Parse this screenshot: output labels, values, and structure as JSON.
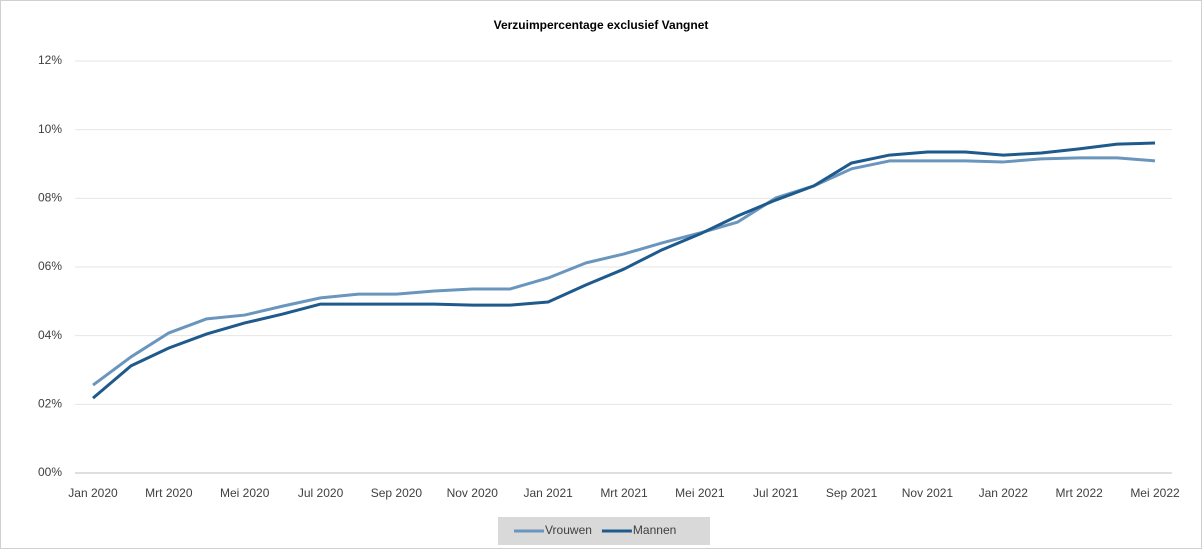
{
  "chart_data": {
    "type": "line",
    "title": "Verzuimpercentage exclusief Vangnet",
    "categories": [
      "Jan 2020",
      null,
      "Mrt 2020",
      null,
      "Mei 2020",
      null,
      "Jul 2020",
      null,
      "Sep 2020",
      null,
      "Nov 2020",
      null,
      "Jan 2021",
      null,
      "Mrt 2021",
      null,
      "Mei 2021",
      null,
      "Jul 2021",
      null,
      "Sep 2021",
      null,
      "Nov 2021",
      null,
      "Jan 2022",
      null,
      "Mrt 2022",
      null,
      "Mei 2022"
    ],
    "series": [
      {
        "name": "Vrouwen",
        "color": "#6a96be",
        "values": [
          2.56,
          3.38,
          4.08,
          4.49,
          4.6,
          4.86,
          5.1,
          5.21,
          5.21,
          5.3,
          5.36,
          5.36,
          5.68,
          6.12,
          6.38,
          6.7,
          6.99,
          7.31,
          8.01,
          8.36,
          8.86,
          9.09,
          9.09,
          9.09,
          9.06,
          9.15,
          9.18,
          9.18,
          9.09
        ]
      },
      {
        "name": "Mannen",
        "color": "#1f5a8c",
        "values": [
          2.18,
          3.12,
          3.64,
          4.05,
          4.37,
          4.63,
          4.92,
          4.92,
          4.92,
          4.92,
          4.89,
          4.89,
          4.98,
          5.48,
          5.94,
          6.5,
          6.96,
          7.49,
          7.95,
          8.36,
          9.03,
          9.26,
          9.35,
          9.35,
          9.26,
          9.32,
          9.44,
          9.58,
          9.61
        ]
      }
    ],
    "ylim": [
      0,
      12
    ],
    "yticks": [
      {
        "value": 0,
        "label": "00%"
      },
      {
        "value": 2,
        "label": "02%"
      },
      {
        "value": 4,
        "label": "04%"
      },
      {
        "value": 6,
        "label": "06%"
      },
      {
        "value": 8,
        "label": "08%"
      },
      {
        "value": 10,
        "label": "10%"
      },
      {
        "value": 12,
        "label": "12%"
      }
    ],
    "grid": true,
    "legend": "bottom"
  }
}
